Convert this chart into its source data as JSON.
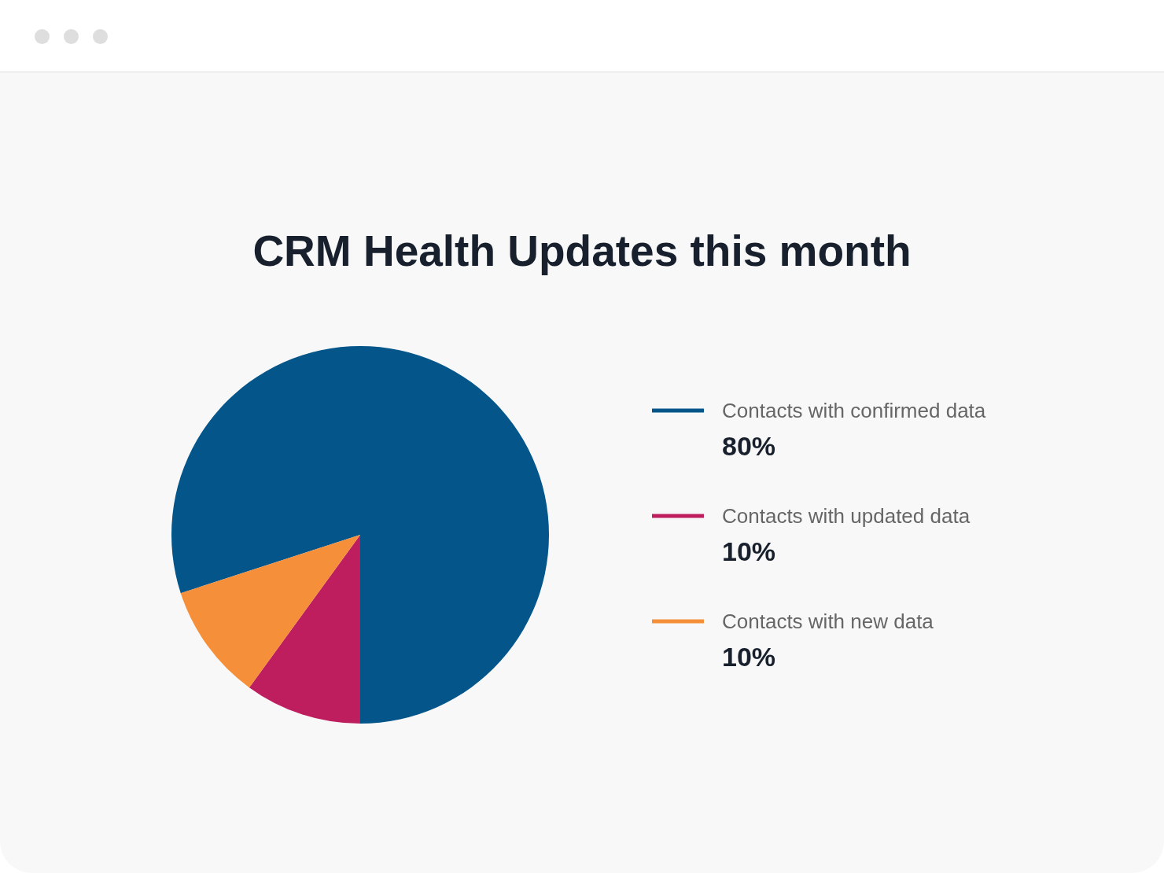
{
  "chart_data": {
    "type": "pie",
    "title": "CRM Health Updates this month",
    "categories": [
      "Contacts with confirmed data",
      "Contacts with updated data",
      "Contacts with new data"
    ],
    "values": [
      80,
      10,
      10
    ],
    "value_labels": [
      "80%",
      "10%",
      "10%"
    ],
    "colors": [
      "#03558a",
      "#be1e5e",
      "#f58f39"
    ],
    "legend": "right"
  }
}
